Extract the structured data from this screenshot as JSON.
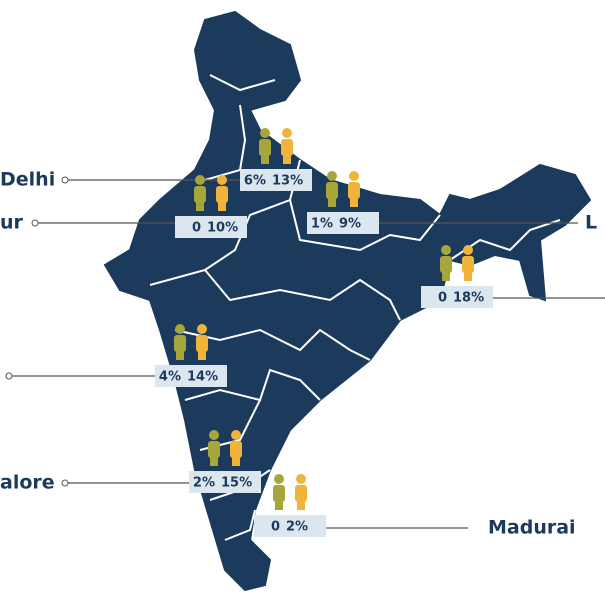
{
  "callouts": [
    {
      "label": "Delhi",
      "women": "6%",
      "men": "13%"
    },
    {
      "label": "ur",
      "women": "0",
      "men": "10%"
    },
    {
      "label": "L",
      "women": "1%",
      "men": "9%"
    },
    {
      "women": "0",
      "men": "18%"
    },
    {
      "women": "4%",
      "men": "14%"
    },
    {
      "label": "alore",
      "women": "2%",
      "men": "15%"
    },
    {
      "label": "Madurai",
      "women": "0",
      "men": "2%"
    }
  ]
}
